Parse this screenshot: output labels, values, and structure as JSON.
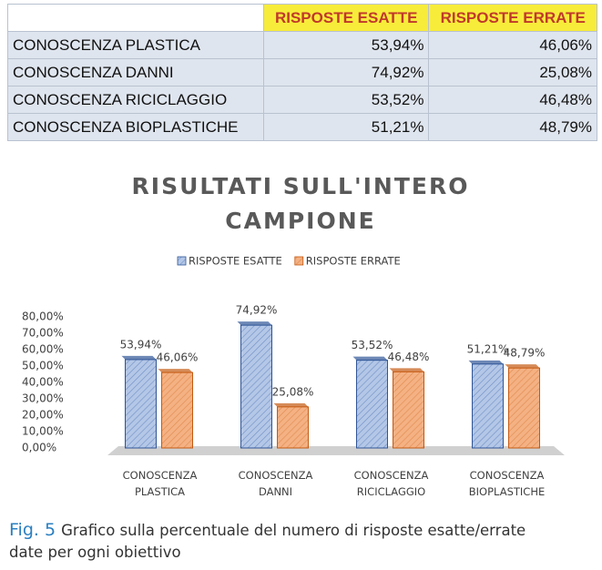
{
  "table": {
    "header": [
      "RISPOSTE ESATTE",
      "RISPOSTE ERRATE"
    ],
    "rows": [
      [
        "CONOSCENZA PLASTICA",
        "53,94%",
        "46,06%"
      ],
      [
        "CONOSCENZA DANNI",
        "74,92%",
        "25,08%"
      ],
      [
        "CONOSCENZA RICICLAGGIO",
        "53,52%",
        "46,48%"
      ],
      [
        "CONOSCENZA BIOPLASTICHE",
        "51,21%",
        "48,79%"
      ]
    ]
  },
  "chart_data": {
    "type": "bar",
    "title": "RISULTATI SULL'INTERO CAMPIONE",
    "categories": [
      "CONOSCENZA PLASTICA",
      "CONOSCENZA DANNI",
      "CONOSCENZA RICICLAGGIO",
      "CONOSCENZA BIOPLASTICHE"
    ],
    "series": [
      {
        "name": "RISPOSTE ESATTE",
        "color": "#b4c7e7",
        "values": [
          53.94,
          74.92,
          53.52,
          51.21
        ],
        "value_labels": [
          "53,94%",
          "74,92%",
          "53,52%",
          "51,21%"
        ]
      },
      {
        "name": "RISPOSTE ERRATE",
        "color": "#f4b183",
        "values": [
          46.06,
          25.08,
          46.48,
          48.79
        ],
        "value_labels": [
          "46,06%",
          "25,08%",
          "46,48%",
          "48,79%"
        ]
      }
    ],
    "ylim": [
      0,
      80
    ],
    "yticks": [
      {
        "value": 0,
        "label": "0,00%"
      },
      {
        "value": 10,
        "label": "10,00%"
      },
      {
        "value": 20,
        "label": "20,00%"
      },
      {
        "value": 30,
        "label": "30,00%"
      },
      {
        "value": 40,
        "label": "40,00%"
      },
      {
        "value": 50,
        "label": "50,00%"
      },
      {
        "value": 60,
        "label": "60,00%"
      },
      {
        "value": 70,
        "label": "70,00%"
      },
      {
        "value": 80,
        "label": "80,00%"
      }
    ],
    "legend": "top",
    "grid": false
  },
  "caption": {
    "label": "Fig. 5",
    "text": "Grafico sulla percentuale del numero di risposte esatte/errate date per ogni obiettivo"
  }
}
